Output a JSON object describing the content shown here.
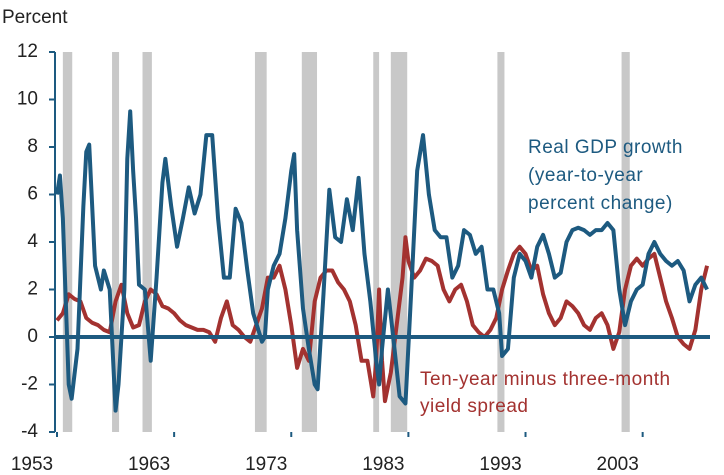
{
  "chart_data": {
    "type": "line",
    "y_axis_label": "Percent",
    "xlim": [
      1953,
      2008.75
    ],
    "xticks": [
      1953,
      1963,
      1973,
      1983,
      1993,
      2003
    ],
    "ylim": [
      -4,
      12
    ],
    "yticks": [
      -4,
      -2,
      0,
      2,
      4,
      6,
      8,
      10,
      12
    ],
    "recession_color": "#c8c8c8",
    "recessions": [
      [
        1953.5,
        1954.3
      ],
      [
        1957.7,
        1958.3
      ],
      [
        1960.3,
        1961.1
      ],
      [
        1969.9,
        1970.9
      ],
      [
        1973.9,
        1975.2
      ],
      [
        1980.0,
        1980.5
      ],
      [
        1981.5,
        1982.9
      ],
      [
        1990.6,
        1991.2
      ],
      [
        2001.2,
        2001.9
      ]
    ],
    "series": [
      {
        "name": "Real GDP growth",
        "color": "#1d5a80",
        "annotation": [
          "Real GDP growth",
          "(year-to-year",
          "percent change)"
        ],
        "x": [
          1953.0,
          1953.25,
          1953.5,
          1954.0,
          1954.25,
          1954.75,
          1955.25,
          1955.5,
          1955.75,
          1956.25,
          1956.75,
          1957.0,
          1957.5,
          1958.0,
          1958.25,
          1958.75,
          1959.0,
          1959.25,
          1959.5,
          1959.75,
          1960.0,
          1960.5,
          1961.0,
          1961.5,
          1962.0,
          1962.25,
          1962.75,
          1963.25,
          1963.75,
          1964.25,
          1964.75,
          1965.25,
          1965.75,
          1966.25,
          1966.75,
          1967.25,
          1967.75,
          1968.25,
          1968.75,
          1969.25,
          1969.75,
          1970.5,
          1970.75,
          1971.0,
          1971.5,
          1972.0,
          1972.5,
          1973.0,
          1973.25,
          1973.5,
          1974.0,
          1974.5,
          1975.0,
          1975.25,
          1975.75,
          1976.25,
          1976.75,
          1977.25,
          1977.75,
          1978.25,
          1978.75,
          1979.25,
          1979.75,
          1980.25,
          1980.5,
          1980.75,
          1981.25,
          1981.75,
          1982.25,
          1982.75,
          1983.25,
          1983.75,
          1984.25,
          1984.75,
          1985.25,
          1985.75,
          1986.25,
          1986.75,
          1987.25,
          1987.75,
          1988.25,
          1988.75,
          1989.25,
          1989.75,
          1990.25,
          1990.75,
          1991.0,
          1991.5,
          1992.0,
          1992.5,
          1993.0,
          1993.5,
          1994.0,
          1994.5,
          1995.0,
          1995.5,
          1996.0,
          1996.5,
          1997.0,
          1997.5,
          1998.0,
          1998.5,
          1999.0,
          1999.5,
          2000.0,
          2000.5,
          2001.0,
          2001.5,
          2002.0,
          2002.5,
          2003.0,
          2003.5,
          2004.0,
          2004.5,
          2005.0,
          2005.5,
          2006.0,
          2006.5,
          2007.0,
          2007.5,
          2008.0,
          2008.5
        ],
        "values": [
          6.0,
          6.8,
          5.0,
          -2.0,
          -2.6,
          -0.5,
          5.5,
          7.8,
          8.1,
          3.0,
          2.0,
          2.8,
          2.0,
          -3.1,
          -2.0,
          2.0,
          7.5,
          9.5,
          7.0,
          5.0,
          2.2,
          2.0,
          -1.0,
          2.5,
          6.5,
          7.5,
          5.5,
          3.8,
          5.0,
          6.3,
          5.2,
          6.0,
          8.5,
          8.5,
          5.0,
          2.5,
          2.5,
          5.4,
          4.8,
          2.8,
          1.0,
          -0.2,
          0.0,
          2.0,
          3.0,
          3.5,
          5.0,
          7.0,
          7.7,
          4.5,
          1.2,
          -0.5,
          -2.0,
          -2.2,
          1.8,
          6.2,
          4.2,
          4.0,
          5.8,
          4.5,
          6.7,
          3.5,
          1.5,
          -1.0,
          -2.0,
          -0.5,
          2.0,
          -0.2,
          -2.5,
          -2.8,
          2.0,
          7.0,
          8.5,
          6.0,
          4.5,
          4.2,
          4.2,
          2.5,
          3.0,
          4.5,
          4.3,
          3.5,
          3.8,
          2.0,
          2.0,
          1.0,
          -0.8,
          -0.5,
          2.5,
          3.5,
          3.2,
          2.5,
          3.8,
          4.3,
          3.5,
          2.5,
          2.7,
          4.0,
          4.5,
          4.6,
          4.5,
          4.3,
          4.5,
          4.5,
          4.8,
          4.5,
          2.0,
          0.5,
          1.5,
          2.0,
          2.2,
          3.5,
          4.0,
          3.5,
          3.2,
          3.0,
          3.2,
          2.8,
          1.5,
          2.2,
          2.5,
          2.0
        ]
      },
      {
        "name": "Ten-year minus three-month yield spread",
        "color": "#a33230",
        "annotation": [
          "Ten-year minus three-month",
          "yield spread"
        ],
        "x": [
          1953.0,
          1953.5,
          1954.0,
          1954.5,
          1955.0,
          1955.5,
          1956.0,
          1956.5,
          1957.0,
          1957.5,
          1958.0,
          1958.5,
          1959.0,
          1959.5,
          1960.0,
          1960.5,
          1961.0,
          1961.5,
          1962.0,
          1962.5,
          1963.0,
          1963.5,
          1964.0,
          1964.5,
          1965.0,
          1965.5,
          1966.0,
          1966.5,
          1967.0,
          1967.5,
          1968.0,
          1968.5,
          1969.0,
          1969.5,
          1970.0,
          1970.5,
          1971.0,
          1971.5,
          1972.0,
          1972.5,
          1973.0,
          1973.5,
          1974.0,
          1974.5,
          1975.0,
          1975.5,
          1976.0,
          1976.5,
          1977.0,
          1977.5,
          1978.0,
          1978.5,
          1979.0,
          1979.5,
          1980.0,
          1980.25,
          1980.5,
          1980.75,
          1981.0,
          1981.5,
          1982.0,
          1982.5,
          1982.75,
          1983.0,
          1983.5,
          1984.0,
          1984.5,
          1985.0,
          1985.5,
          1986.0,
          1986.5,
          1987.0,
          1987.5,
          1988.0,
          1988.5,
          1989.0,
          1989.5,
          1990.0,
          1990.5,
          1991.0,
          1991.5,
          1992.0,
          1992.5,
          1993.0,
          1993.5,
          1994.0,
          1994.5,
          1995.0,
          1995.5,
          1996.0,
          1996.5,
          1997.0,
          1997.5,
          1998.0,
          1998.5,
          1999.0,
          1999.5,
          2000.0,
          2000.5,
          2001.0,
          2001.5,
          2002.0,
          2002.5,
          2003.0,
          2003.5,
          2004.0,
          2004.5,
          2005.0,
          2005.5,
          2006.0,
          2006.5,
          2007.0,
          2007.5,
          2008.0,
          2008.5
        ],
        "values": [
          0.7,
          1.0,
          1.8,
          1.6,
          1.5,
          0.8,
          0.6,
          0.5,
          0.3,
          0.2,
          1.5,
          2.2,
          1.0,
          0.4,
          0.5,
          1.5,
          2.0,
          1.8,
          1.3,
          1.2,
          1.0,
          0.7,
          0.5,
          0.4,
          0.3,
          0.3,
          0.2,
          -0.2,
          0.8,
          1.5,
          0.5,
          0.3,
          0.0,
          -0.2,
          0.5,
          1.2,
          2.5,
          2.5,
          3.0,
          2.0,
          0.5,
          -1.3,
          -0.5,
          -1.0,
          1.5,
          2.5,
          2.8,
          2.8,
          2.3,
          2.0,
          1.5,
          0.5,
          -1.0,
          -1.0,
          -2.5,
          -1.0,
          2.0,
          -1.0,
          -2.7,
          -1.5,
          0.5,
          2.5,
          4.2,
          3.2,
          2.5,
          2.8,
          3.3,
          3.2,
          3.0,
          2.0,
          1.5,
          2.0,
          2.2,
          1.5,
          0.5,
          0.2,
          0.0,
          0.3,
          0.8,
          2.0,
          2.8,
          3.5,
          3.8,
          3.5,
          2.8,
          3.0,
          1.8,
          1.0,
          0.5,
          0.8,
          1.5,
          1.3,
          1.0,
          0.5,
          0.3,
          0.8,
          1.0,
          0.5,
          -0.5,
          0.2,
          2.0,
          3.0,
          3.3,
          3.0,
          3.3,
          3.5,
          2.5,
          1.5,
          0.8,
          0.0,
          -0.3,
          -0.5,
          0.3,
          2.0,
          3.0
        ]
      }
    ]
  }
}
